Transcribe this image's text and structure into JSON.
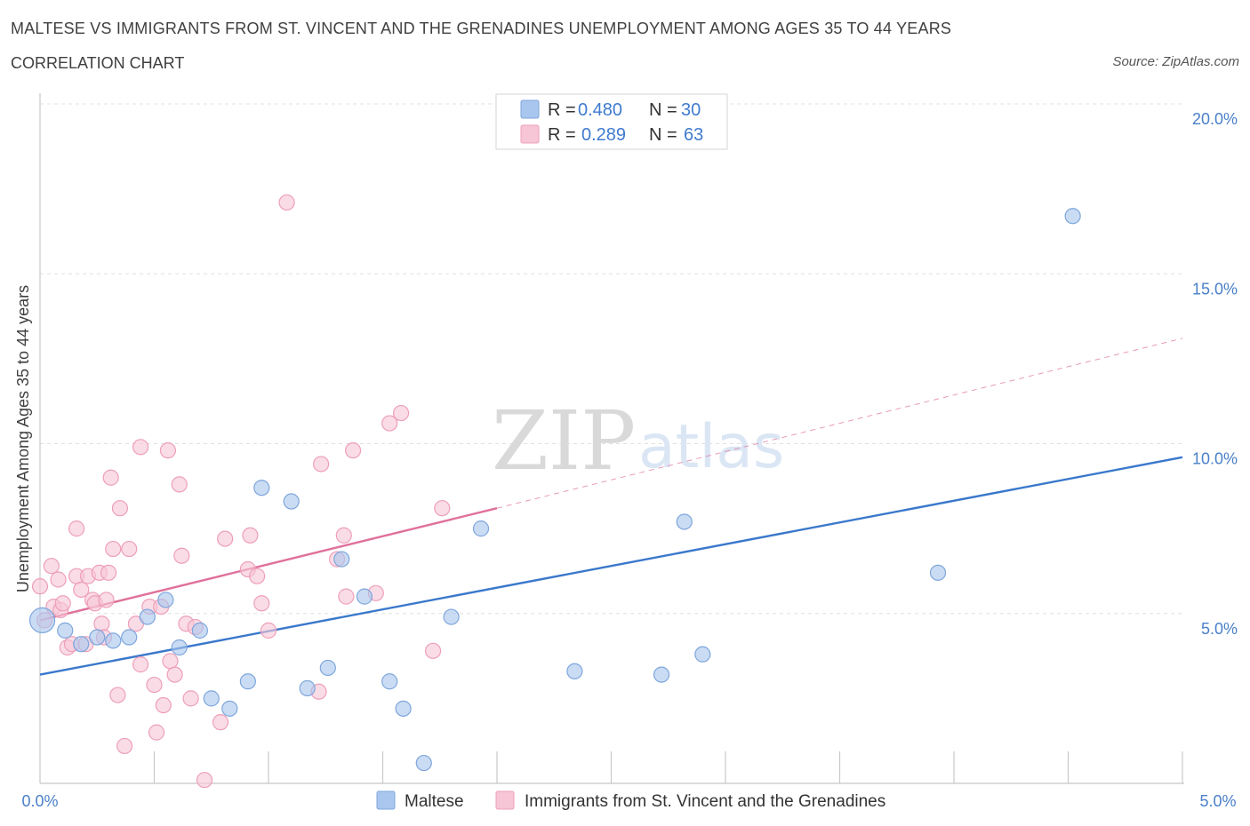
{
  "header": {
    "title": "MALTESE VS IMMIGRANTS FROM ST. VINCENT AND THE GRENADINES UNEMPLOYMENT AMONG AGES 35 TO 44 YEARS",
    "subtitle": "CORRELATION CHART",
    "source": "Source: ZipAtlas.com"
  },
  "watermark": {
    "zip": "ZIP",
    "atlas": "atlas"
  },
  "chart_data": {
    "type": "scatter",
    "title": "MALTESE VS IMMIGRANTS FROM ST. VINCENT AND THE GRENADINES UNEMPLOYMENT AMONG AGES 35 TO 44 YEARS",
    "xlabel": "",
    "ylabel": "Unemployment Among Ages 35 to 44 years",
    "xlim": [
      0,
      5
    ],
    "ylim": [
      0,
      20
    ],
    "x_tick_labels": [
      "0.0%",
      "5.0%"
    ],
    "y_ticks": [
      5,
      10,
      15,
      20
    ],
    "y_tick_labels": [
      "5.0%",
      "10.0%",
      "15.0%",
      "20.0%"
    ],
    "grid": true,
    "legend_placement": "top-center",
    "stats": [
      {
        "r_label": "R =",
        "r_value": "0.480",
        "n_label": "N =",
        "n_value": "30"
      },
      {
        "r_label": "R =",
        "r_value": "0.289",
        "n_label": "N =",
        "n_value": "63"
      }
    ],
    "series": [
      {
        "name": "Maltese",
        "color": "#a9c6ee",
        "stroke": "#7ea6dc",
        "trend_color": "#3a78cc",
        "trend": {
          "x0": 0.0,
          "y0": 3.2,
          "x1": 5.0,
          "y1": 9.6
        },
        "points": [
          [
            0.01,
            4.8
          ],
          [
            0.11,
            4.5
          ],
          [
            0.18,
            4.1
          ],
          [
            0.25,
            4.3
          ],
          [
            0.32,
            4.2
          ],
          [
            0.39,
            4.3
          ],
          [
            0.47,
            4.9
          ],
          [
            0.55,
            5.4
          ],
          [
            0.61,
            4.0
          ],
          [
            0.7,
            4.5
          ],
          [
            0.75,
            2.5
          ],
          [
            0.83,
            2.2
          ],
          [
            0.91,
            3.0
          ],
          [
            0.97,
            8.7
          ],
          [
            1.1,
            8.3
          ],
          [
            1.17,
            2.8
          ],
          [
            1.26,
            3.4
          ],
          [
            1.32,
            6.6
          ],
          [
            1.42,
            5.5
          ],
          [
            1.53,
            3.0
          ],
          [
            1.59,
            2.2
          ],
          [
            1.68,
            0.6
          ],
          [
            1.8,
            4.9
          ],
          [
            1.93,
            7.5
          ],
          [
            2.34,
            3.3
          ],
          [
            2.72,
            3.2
          ],
          [
            2.82,
            7.7
          ],
          [
            2.9,
            3.8
          ],
          [
            3.93,
            6.2
          ],
          [
            4.52,
            16.7
          ]
        ]
      },
      {
        "name": "Immigrants from St. Vincent and the Grenadines",
        "color": "#f7c6d6",
        "stroke": "#ee9fb8",
        "trend_color": "#e0709a",
        "trend": {
          "x0": 0.0,
          "y0": 4.8,
          "x1": 2.0,
          "y1": 8.1
        },
        "trend_extension": {
          "x0": 2.0,
          "y0": 8.1,
          "x1": 5.0,
          "y1": 13.1
        },
        "points": [
          [
            0.0,
            5.8
          ],
          [
            0.02,
            4.8
          ],
          [
            0.05,
            6.4
          ],
          [
            0.06,
            5.2
          ],
          [
            0.08,
            6.0
          ],
          [
            0.09,
            5.1
          ],
          [
            0.1,
            5.3
          ],
          [
            0.12,
            4.0
          ],
          [
            0.14,
            4.1
          ],
          [
            0.16,
            6.1
          ],
          [
            0.16,
            7.5
          ],
          [
            0.18,
            5.7
          ],
          [
            0.2,
            4.1
          ],
          [
            0.21,
            6.1
          ],
          [
            0.23,
            5.4
          ],
          [
            0.24,
            5.3
          ],
          [
            0.26,
            6.2
          ],
          [
            0.27,
            4.7
          ],
          [
            0.28,
            4.3
          ],
          [
            0.29,
            5.4
          ],
          [
            0.3,
            6.2
          ],
          [
            0.31,
            9.0
          ],
          [
            0.32,
            6.9
          ],
          [
            0.34,
            2.6
          ],
          [
            0.35,
            8.1
          ],
          [
            0.37,
            1.1
          ],
          [
            0.39,
            6.9
          ],
          [
            0.42,
            4.7
          ],
          [
            0.44,
            3.5
          ],
          [
            0.44,
            9.9
          ],
          [
            0.48,
            5.2
          ],
          [
            0.5,
            2.9
          ],
          [
            0.51,
            1.5
          ],
          [
            0.53,
            5.2
          ],
          [
            0.54,
            2.3
          ],
          [
            0.56,
            9.8
          ],
          [
            0.57,
            3.6
          ],
          [
            0.59,
            3.2
          ],
          [
            0.61,
            8.8
          ],
          [
            0.62,
            6.7
          ],
          [
            0.64,
            4.7
          ],
          [
            0.66,
            2.5
          ],
          [
            0.72,
            0.1
          ],
          [
            0.79,
            1.8
          ],
          [
            0.81,
            7.2
          ],
          [
            0.91,
            6.3
          ],
          [
            0.92,
            7.3
          ],
          [
            0.95,
            6.1
          ],
          [
            0.97,
            5.3
          ],
          [
            1.0,
            4.5
          ],
          [
            1.08,
            17.1
          ],
          [
            1.22,
            2.7
          ],
          [
            1.23,
            9.4
          ],
          [
            1.3,
            6.6
          ],
          [
            1.33,
            7.3
          ],
          [
            1.34,
            5.5
          ],
          [
            1.37,
            9.8
          ],
          [
            1.47,
            5.6
          ],
          [
            1.53,
            10.6
          ],
          [
            1.58,
            10.9
          ],
          [
            1.72,
            3.9
          ],
          [
            1.76,
            8.1
          ],
          [
            0.68,
            4.6
          ]
        ]
      }
    ]
  }
}
